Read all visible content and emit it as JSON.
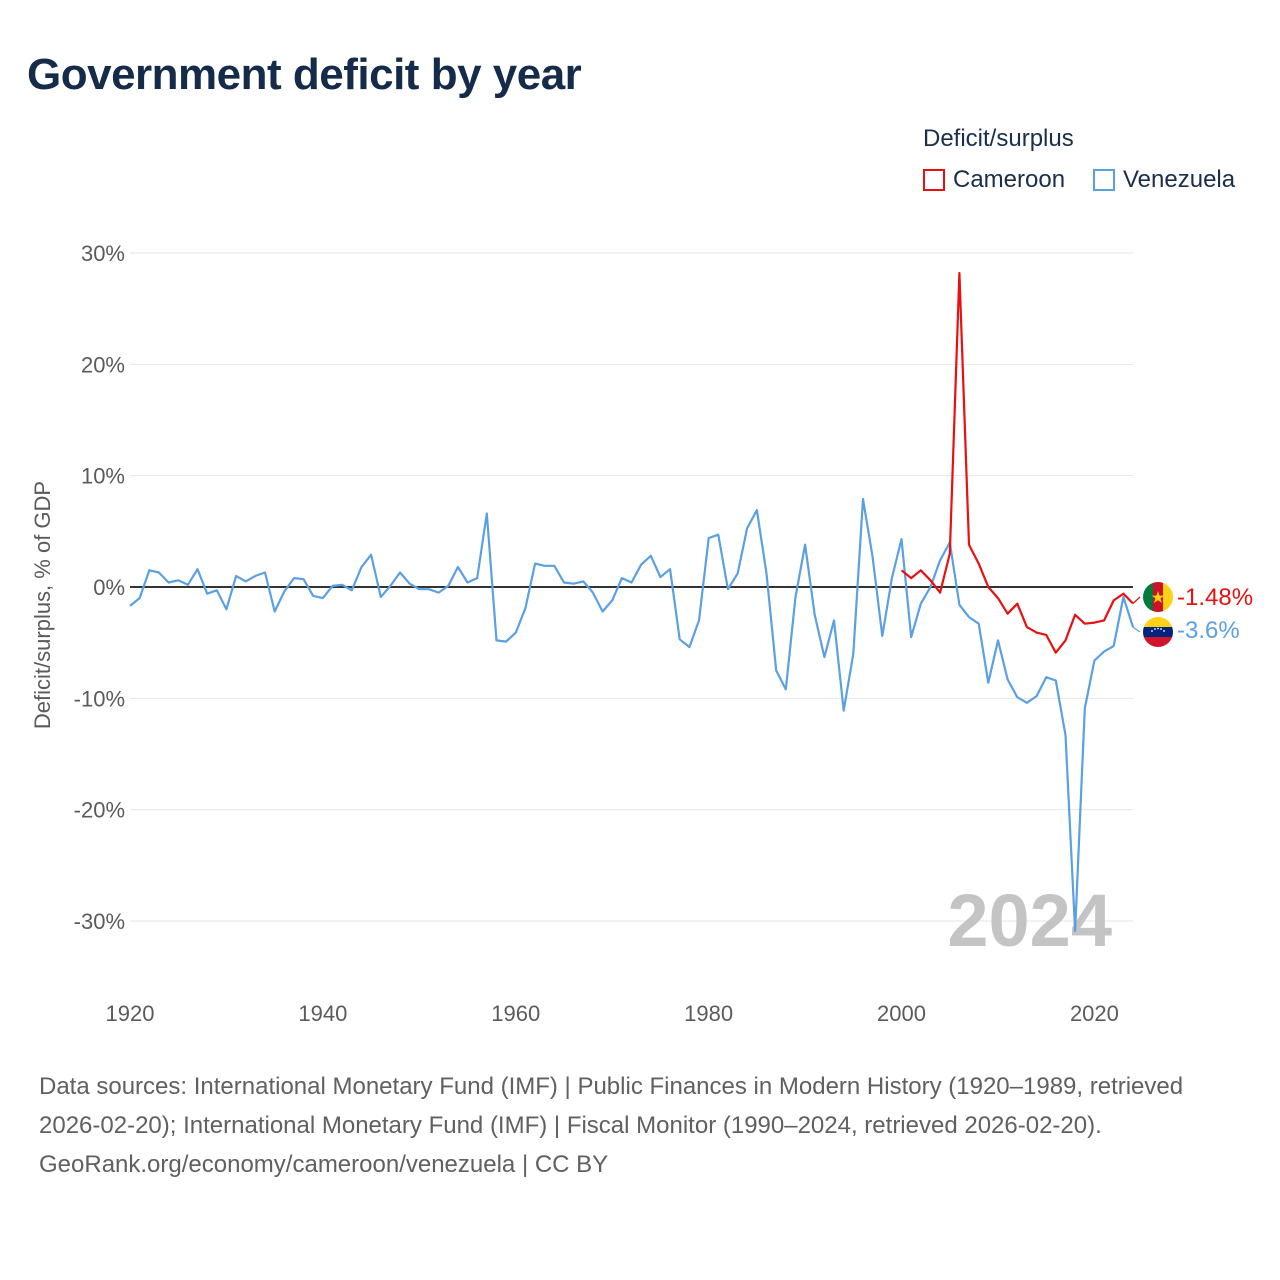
{
  "title": "Government deficit by year",
  "legend": {
    "title": "Deficit/surplus",
    "items": [
      {
        "label": "Cameroon",
        "color": "#e81010"
      },
      {
        "label": "Venezuela",
        "color": "#5ba0e2"
      }
    ]
  },
  "year_label": "2024",
  "footer": {
    "sources": "Data sources: International Monetary Fund (IMF) | Public Finances in Modern History (1920–1989, retrieved 2026-02-20); International Monetary Fund (IMF) | Fiscal Monitor (1990–2024, retrieved 2026-02-20).",
    "credit": "GeoRank.org/economy/cameroon/venezuela | CC BY"
  },
  "chart_data": {
    "type": "line",
    "title": "Government deficit by year",
    "xlabel": "",
    "ylabel": "Deficit/surplus, % of GDP",
    "xlim": [
      1920,
      2024
    ],
    "ylim": [
      -35,
      30
    ],
    "x_ticks": [
      {
        "value": 1920,
        "label": "1920"
      },
      {
        "value": 1940,
        "label": "1940"
      },
      {
        "value": 1960,
        "label": "1960"
      },
      {
        "value": 1980,
        "label": "1980"
      },
      {
        "value": 2000,
        "label": "2000"
      },
      {
        "value": 2020,
        "label": "2020"
      }
    ],
    "y_ticks": [
      {
        "value": 30,
        "label": "30%"
      },
      {
        "value": 20,
        "label": "20%"
      },
      {
        "value": 10,
        "label": "10%"
      },
      {
        "value": 0,
        "label": "0%"
      },
      {
        "value": -10,
        "label": "-10%"
      },
      {
        "value": -20,
        "label": "-20%"
      },
      {
        "value": -30,
        "label": "-30%"
      }
    ],
    "series": [
      {
        "name": "Venezuela",
        "color": "#5ba0e2",
        "end_label": "-3.6%",
        "x": [
          1920,
          1921,
          1922,
          1923,
          1924,
          1925,
          1926,
          1927,
          1928,
          1929,
          1930,
          1931,
          1932,
          1933,
          1934,
          1935,
          1936,
          1937,
          1938,
          1939,
          1940,
          1941,
          1942,
          1943,
          1944,
          1945,
          1946,
          1947,
          1948,
          1949,
          1950,
          1951,
          1952,
          1953,
          1954,
          1955,
          1956,
          1957,
          1958,
          1959,
          1960,
          1961,
          1962,
          1963,
          1964,
          1965,
          1966,
          1967,
          1968,
          1969,
          1970,
          1971,
          1972,
          1973,
          1974,
          1975,
          1976,
          1977,
          1978,
          1979,
          1980,
          1981,
          1982,
          1983,
          1984,
          1985,
          1986,
          1987,
          1988,
          1989,
          1990,
          1991,
          1992,
          1993,
          1994,
          1995,
          1996,
          1997,
          1998,
          1999,
          2000,
          2001,
          2002,
          2003,
          2004,
          2005,
          2006,
          2007,
          2008,
          2009,
          2010,
          2011,
          2012,
          2013,
          2014,
          2015,
          2016,
          2017,
          2018,
          2019,
          2020,
          2021,
          2022,
          2023,
          2024
        ],
        "values": [
          -1.7,
          -1.0,
          1.5,
          1.3,
          0.4,
          0.6,
          0.2,
          1.6,
          -0.6,
          -0.3,
          -2.0,
          1.0,
          0.5,
          1.0,
          1.3,
          -2.2,
          -0.4,
          0.8,
          0.7,
          -0.8,
          -1.0,
          0.1,
          0.2,
          -0.3,
          1.8,
          2.9,
          -0.9,
          0.1,
          1.3,
          0.3,
          -0.2,
          -0.2,
          -0.5,
          0.1,
          1.8,
          0.4,
          0.8,
          6.6,
          -4.8,
          -4.9,
          -4.1,
          -1.9,
          2.1,
          1.9,
          1.9,
          0.4,
          0.3,
          0.5,
          -0.5,
          -2.2,
          -1.2,
          0.8,
          0.4,
          2.0,
          2.8,
          0.9,
          1.6,
          -4.7,
          -5.4,
          -3.0,
          4.4,
          4.7,
          -0.2,
          1.2,
          5.3,
          6.9,
          1.2,
          -7.5,
          -9.2,
          -0.9,
          3.8,
          -2.5,
          -6.3,
          -3.0,
          -11.1,
          -6.0,
          7.9,
          2.7,
          -4.4,
          0.8,
          4.3,
          -4.5,
          -1.5,
          0.0,
          2.4,
          4.0,
          -1.6,
          -2.7,
          -3.3,
          -8.6,
          -4.8,
          -8.3,
          -9.9,
          -10.4,
          -9.8,
          -8.1,
          -8.4,
          -13.3,
          -30.9,
          -10.9,
          -6.6,
          -5.8,
          -5.3,
          -0.9,
          -3.6
        ]
      },
      {
        "name": "Cameroon",
        "color": "#e81010",
        "end_label": "-1.48%",
        "x": [
          2000,
          2001,
          2002,
          2003,
          2004,
          2005,
          2006,
          2007,
          2008,
          2009,
          2010,
          2011,
          2012,
          2013,
          2014,
          2015,
          2016,
          2017,
          2018,
          2019,
          2020,
          2021,
          2022,
          2023,
          2024
        ],
        "values": [
          1.5,
          0.8,
          1.5,
          0.6,
          -0.5,
          3.0,
          28.2,
          3.8,
          2.1,
          0.0,
          -1.0,
          -2.4,
          -1.5,
          -3.6,
          -4.1,
          -4.3,
          -5.9,
          -4.8,
          -2.5,
          -3.3,
          -3.2,
          -3.0,
          -1.2,
          -0.6,
          -1.48
        ]
      }
    ]
  }
}
